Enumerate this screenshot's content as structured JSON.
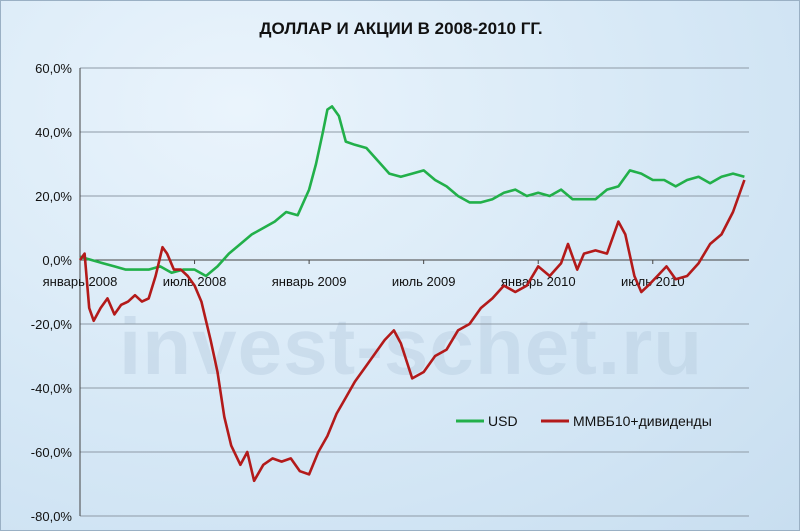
{
  "chart_data": {
    "type": "line",
    "title": "ДОЛЛАР И АКЦИИ В 2008-2010 ГГ.",
    "watermark": "invest-schet.ru",
    "ylim": [
      -80,
      60
    ],
    "ytick_values": [
      60,
      40,
      20,
      0,
      -20,
      -40,
      -60,
      -80
    ],
    "ytick_labels": [
      "60,0%",
      "40,0%",
      "20,0%",
      "0,0%",
      "-20,0%",
      "-40,0%",
      "-60,0%",
      "-80,0%"
    ],
    "xlim": [
      2008.0,
      2010.92
    ],
    "xticks": [
      {
        "x": 2008.0,
        "label": "январь 2008"
      },
      {
        "x": 2008.5,
        "label": "июль 2008"
      },
      {
        "x": 2009.0,
        "label": "январь 2009"
      },
      {
        "x": 2009.5,
        "label": "июль 2009"
      },
      {
        "x": 2010.0,
        "label": "январь 2010"
      },
      {
        "x": 2010.5,
        "label": "июль 2010"
      }
    ],
    "grid": true,
    "legend_position": "lower-right",
    "series": [
      {
        "name": "USD",
        "color": "#22b04a",
        "x": [
          2008.0,
          2008.05,
          2008.1,
          2008.15,
          2008.2,
          2008.25,
          2008.3,
          2008.35,
          2008.4,
          2008.45,
          2008.5,
          2008.55,
          2008.6,
          2008.65,
          2008.7,
          2008.75,
          2008.8,
          2008.85,
          2008.9,
          2008.95,
          2009.0,
          2009.03,
          2009.06,
          2009.08,
          2009.1,
          2009.13,
          2009.16,
          2009.2,
          2009.25,
          2009.3,
          2009.35,
          2009.4,
          2009.45,
          2009.5,
          2009.55,
          2009.6,
          2009.65,
          2009.7,
          2009.75,
          2009.8,
          2009.85,
          2009.9,
          2009.95,
          2010.0,
          2010.05,
          2010.1,
          2010.15,
          2010.2,
          2010.25,
          2010.3,
          2010.35,
          2010.4,
          2010.45,
          2010.5,
          2010.55,
          2010.6,
          2010.65,
          2010.7,
          2010.75,
          2010.8,
          2010.85,
          2010.9
        ],
        "y": [
          1,
          0,
          -1,
          -2,
          -3,
          -3,
          -3,
          -2,
          -4,
          -3,
          -3,
          -5,
          -2,
          2,
          5,
          8,
          10,
          12,
          15,
          14,
          22,
          30,
          40,
          47,
          48,
          45,
          37,
          36,
          35,
          31,
          27,
          26,
          27,
          28,
          25,
          23,
          20,
          18,
          18,
          19,
          21,
          22,
          20,
          21,
          20,
          22,
          19,
          19,
          19,
          22,
          23,
          28,
          27,
          25,
          25,
          23,
          25,
          26,
          24,
          26,
          27,
          26
        ]
      },
      {
        "name": "ММВБ10+дивиденды",
        "color": "#b31a1a",
        "x": [
          2008.0,
          2008.02,
          2008.04,
          2008.06,
          2008.09,
          2008.12,
          2008.15,
          2008.18,
          2008.21,
          2008.24,
          2008.27,
          2008.3,
          2008.33,
          2008.36,
          2008.38,
          2008.41,
          2008.44,
          2008.47,
          2008.5,
          2008.53,
          2008.57,
          2008.6,
          2008.63,
          2008.66,
          2008.7,
          2008.73,
          2008.76,
          2008.8,
          2008.84,
          2008.88,
          2008.92,
          2008.96,
          2009.0,
          2009.04,
          2009.08,
          2009.12,
          2009.16,
          2009.2,
          2009.25,
          2009.3,
          2009.33,
          2009.37,
          2009.4,
          2009.45,
          2009.5,
          2009.55,
          2009.6,
          2009.65,
          2009.7,
          2009.75,
          2009.8,
          2009.85,
          2009.9,
          2009.95,
          2010.0,
          2010.05,
          2010.1,
          2010.13,
          2010.17,
          2010.2,
          2010.25,
          2010.3,
          2010.35,
          2010.38,
          2010.42,
          2010.45,
          2010.48,
          2010.52,
          2010.56,
          2010.6,
          2010.65,
          2010.7,
          2010.75,
          2010.8,
          2010.85,
          2010.9
        ],
        "y": [
          0,
          2,
          -15,
          -19,
          -15,
          -12,
          -17,
          -14,
          -13,
          -11,
          -13,
          -12,
          -5,
          4,
          2,
          -3,
          -3,
          -5,
          -8,
          -13,
          -25,
          -35,
          -49,
          -58,
          -64,
          -60,
          -69,
          -64,
          -62,
          -63,
          -62,
          -66,
          -67,
          -60,
          -55,
          -48,
          -43,
          -38,
          -33,
          -28,
          -25,
          -22,
          -26,
          -37,
          -35,
          -30,
          -28,
          -22,
          -20,
          -15,
          -12,
          -8,
          -10,
          -8,
          -2,
          -5,
          -1,
          5,
          -3,
          2,
          3,
          2,
          12,
          8,
          -5,
          -10,
          -8,
          -5,
          -2,
          -6,
          -5,
          -1,
          5,
          8,
          15,
          25
        ]
      }
    ]
  }
}
